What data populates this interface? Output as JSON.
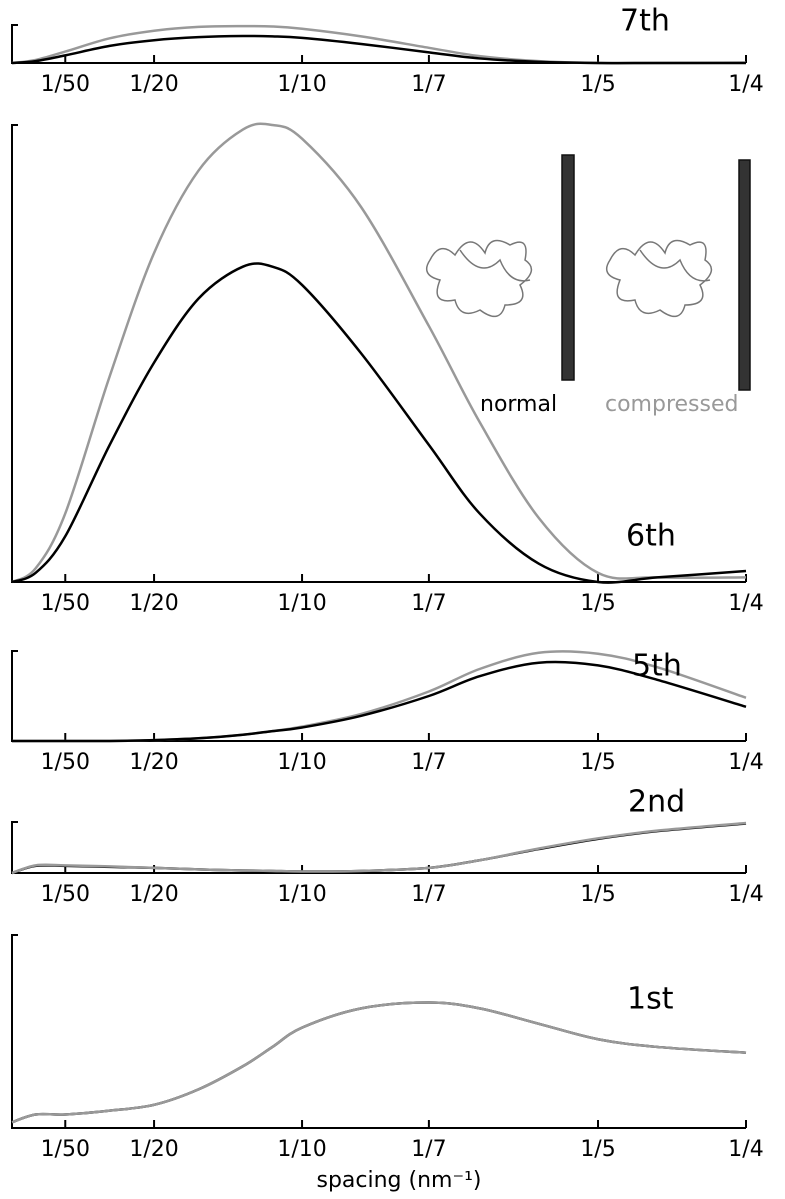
{
  "chart_data": [
    {
      "type": "line",
      "title": "7th",
      "x": [
        0.002,
        0.01,
        0.02,
        0.035,
        0.05,
        0.065,
        0.08,
        0.09,
        0.1,
        0.12,
        0.142857,
        0.16,
        0.18,
        0.2,
        0.22,
        0.25
      ],
      "xlim": [
        0.002,
        0.25
      ],
      "xticks": [
        {
          "value": 0.02,
          "label": "1/50"
        },
        {
          "value": 0.05,
          "label": "1/20"
        },
        {
          "value": 0.1,
          "label": "1/10"
        },
        {
          "value": 0.142857,
          "label": "1/7"
        },
        {
          "value": 0.2,
          "label": "1/5"
        },
        {
          "value": 0.25,
          "label": "1/4"
        }
      ],
      "ylim": [
        0,
        1
      ],
      "series": [
        {
          "color": "#999999",
          "values": [
            0,
            0.08,
            0.3,
            0.65,
            0.85,
            0.95,
            0.97,
            0.96,
            0.9,
            0.7,
            0.4,
            0.18,
            0.05,
            0,
            0,
            0.01
          ]
        },
        {
          "color": "#000000",
          "values": [
            0,
            0.05,
            0.2,
            0.45,
            0.6,
            0.68,
            0.71,
            0.7,
            0.66,
            0.5,
            0.28,
            0.12,
            0.03,
            0,
            0,
            0
          ]
        }
      ]
    },
    {
      "type": "line",
      "title": "6th",
      "x": [
        0.002,
        0.01,
        0.02,
        0.035,
        0.05,
        0.065,
        0.08,
        0.09,
        0.1,
        0.12,
        0.142857,
        0.16,
        0.18,
        0.2,
        0.22,
        0.25
      ],
      "xlim": [
        0.002,
        0.25
      ],
      "xticks": [
        {
          "value": 0.02,
          "label": "1/50"
        },
        {
          "value": 0.05,
          "label": "1/20"
        },
        {
          "value": 0.1,
          "label": "1/10"
        },
        {
          "value": 0.142857,
          "label": "1/7"
        },
        {
          "value": 0.2,
          "label": "1/5"
        },
        {
          "value": 0.25,
          "label": "1/4"
        }
      ],
      "ylim": [
        0,
        1
      ],
      "series": [
        {
          "name": "compressed",
          "color": "#999999",
          "values": [
            0,
            0.03,
            0.15,
            0.45,
            0.72,
            0.9,
            0.99,
            1.0,
            0.97,
            0.82,
            0.56,
            0.35,
            0.14,
            0.02,
            0.01,
            0.01
          ]
        },
        {
          "name": "normal",
          "color": "#000000",
          "values": [
            0,
            0.02,
            0.1,
            0.3,
            0.48,
            0.62,
            0.69,
            0.69,
            0.65,
            0.5,
            0.3,
            0.15,
            0.04,
            0,
            0.01,
            0.024
          ]
        }
      ]
    },
    {
      "type": "line",
      "title": "5th",
      "x": [
        0.002,
        0.01,
        0.02,
        0.035,
        0.05,
        0.065,
        0.08,
        0.09,
        0.1,
        0.12,
        0.142857,
        0.16,
        0.18,
        0.2,
        0.22,
        0.25
      ],
      "xlim": [
        0.002,
        0.25
      ],
      "xticks": [
        {
          "value": 0.02,
          "label": "1/50"
        },
        {
          "value": 0.05,
          "label": "1/20"
        },
        {
          "value": 0.1,
          "label": "1/10"
        },
        {
          "value": 0.142857,
          "label": "1/7"
        },
        {
          "value": 0.2,
          "label": "1/5"
        },
        {
          "value": 0.25,
          "label": "1/4"
        }
      ],
      "ylim": [
        0,
        1
      ],
      "series": [
        {
          "color": "#999999",
          "values": [
            0,
            0,
            0,
            0,
            0.01,
            0.03,
            0.07,
            0.11,
            0.16,
            0.3,
            0.55,
            0.8,
            0.98,
            0.97,
            0.82,
            0.48
          ]
        },
        {
          "color": "#000000",
          "values": [
            0,
            0,
            0,
            0,
            0.01,
            0.03,
            0.07,
            0.11,
            0.15,
            0.28,
            0.5,
            0.72,
            0.87,
            0.84,
            0.68,
            0.38
          ]
        }
      ]
    },
    {
      "type": "line",
      "title": "2nd",
      "x": [
        0.002,
        0.01,
        0.02,
        0.035,
        0.05,
        0.065,
        0.08,
        0.09,
        0.1,
        0.12,
        0.142857,
        0.16,
        0.18,
        0.2,
        0.22,
        0.25
      ],
      "xlim": [
        0.002,
        0.25
      ],
      "xticks": [
        {
          "value": 0.02,
          "label": "1/50"
        },
        {
          "value": 0.05,
          "label": "1/20"
        },
        {
          "value": 0.1,
          "label": "1/10"
        },
        {
          "value": 0.142857,
          "label": "1/7"
        },
        {
          "value": 0.2,
          "label": "1/5"
        },
        {
          "value": 0.25,
          "label": "1/4"
        }
      ],
      "ylim": [
        0,
        1
      ],
      "series": [
        {
          "color": "#000000",
          "values": [
            0,
            0.14,
            0.14,
            0.12,
            0.1,
            0.07,
            0.05,
            0.04,
            0.03,
            0.04,
            0.1,
            0.25,
            0.47,
            0.67,
            0.82,
            0.97
          ]
        },
        {
          "color": "#999999",
          "values": [
            0,
            0.15,
            0.15,
            0.13,
            0.1,
            0.07,
            0.05,
            0.04,
            0.03,
            0.04,
            0.1,
            0.25,
            0.48,
            0.68,
            0.83,
            0.98
          ]
        }
      ]
    },
    {
      "type": "line",
      "title": "1st",
      "x_label": "spacing (nm⁻¹)",
      "x": [
        0.002,
        0.01,
        0.02,
        0.035,
        0.05,
        0.065,
        0.08,
        0.09,
        0.1,
        0.12,
        0.142857,
        0.16,
        0.18,
        0.2,
        0.22,
        0.25
      ],
      "xlim": [
        0.002,
        0.25
      ],
      "xticks": [
        {
          "value": 0.02,
          "label": "1/50"
        },
        {
          "value": 0.05,
          "label": "1/20"
        },
        {
          "value": 0.1,
          "label": "1/10"
        },
        {
          "value": 0.142857,
          "label": "1/7"
        },
        {
          "value": 0.2,
          "label": "1/5"
        },
        {
          "value": 0.25,
          "label": "1/4"
        }
      ],
      "ylim": [
        0,
        1
      ],
      "series": [
        {
          "color": "#000000",
          "values": [
            0.03,
            0.07,
            0.07,
            0.09,
            0.12,
            0.2,
            0.32,
            0.42,
            0.52,
            0.62,
            0.65,
            0.62,
            0.54,
            0.46,
            0.42,
            0.39
          ]
        },
        {
          "color": "#999999",
          "values": [
            0.03,
            0.07,
            0.07,
            0.09,
            0.12,
            0.2,
            0.32,
            0.42,
            0.52,
            0.62,
            0.65,
            0.62,
            0.54,
            0.46,
            0.42,
            0.39
          ]
        }
      ]
    }
  ]
}
